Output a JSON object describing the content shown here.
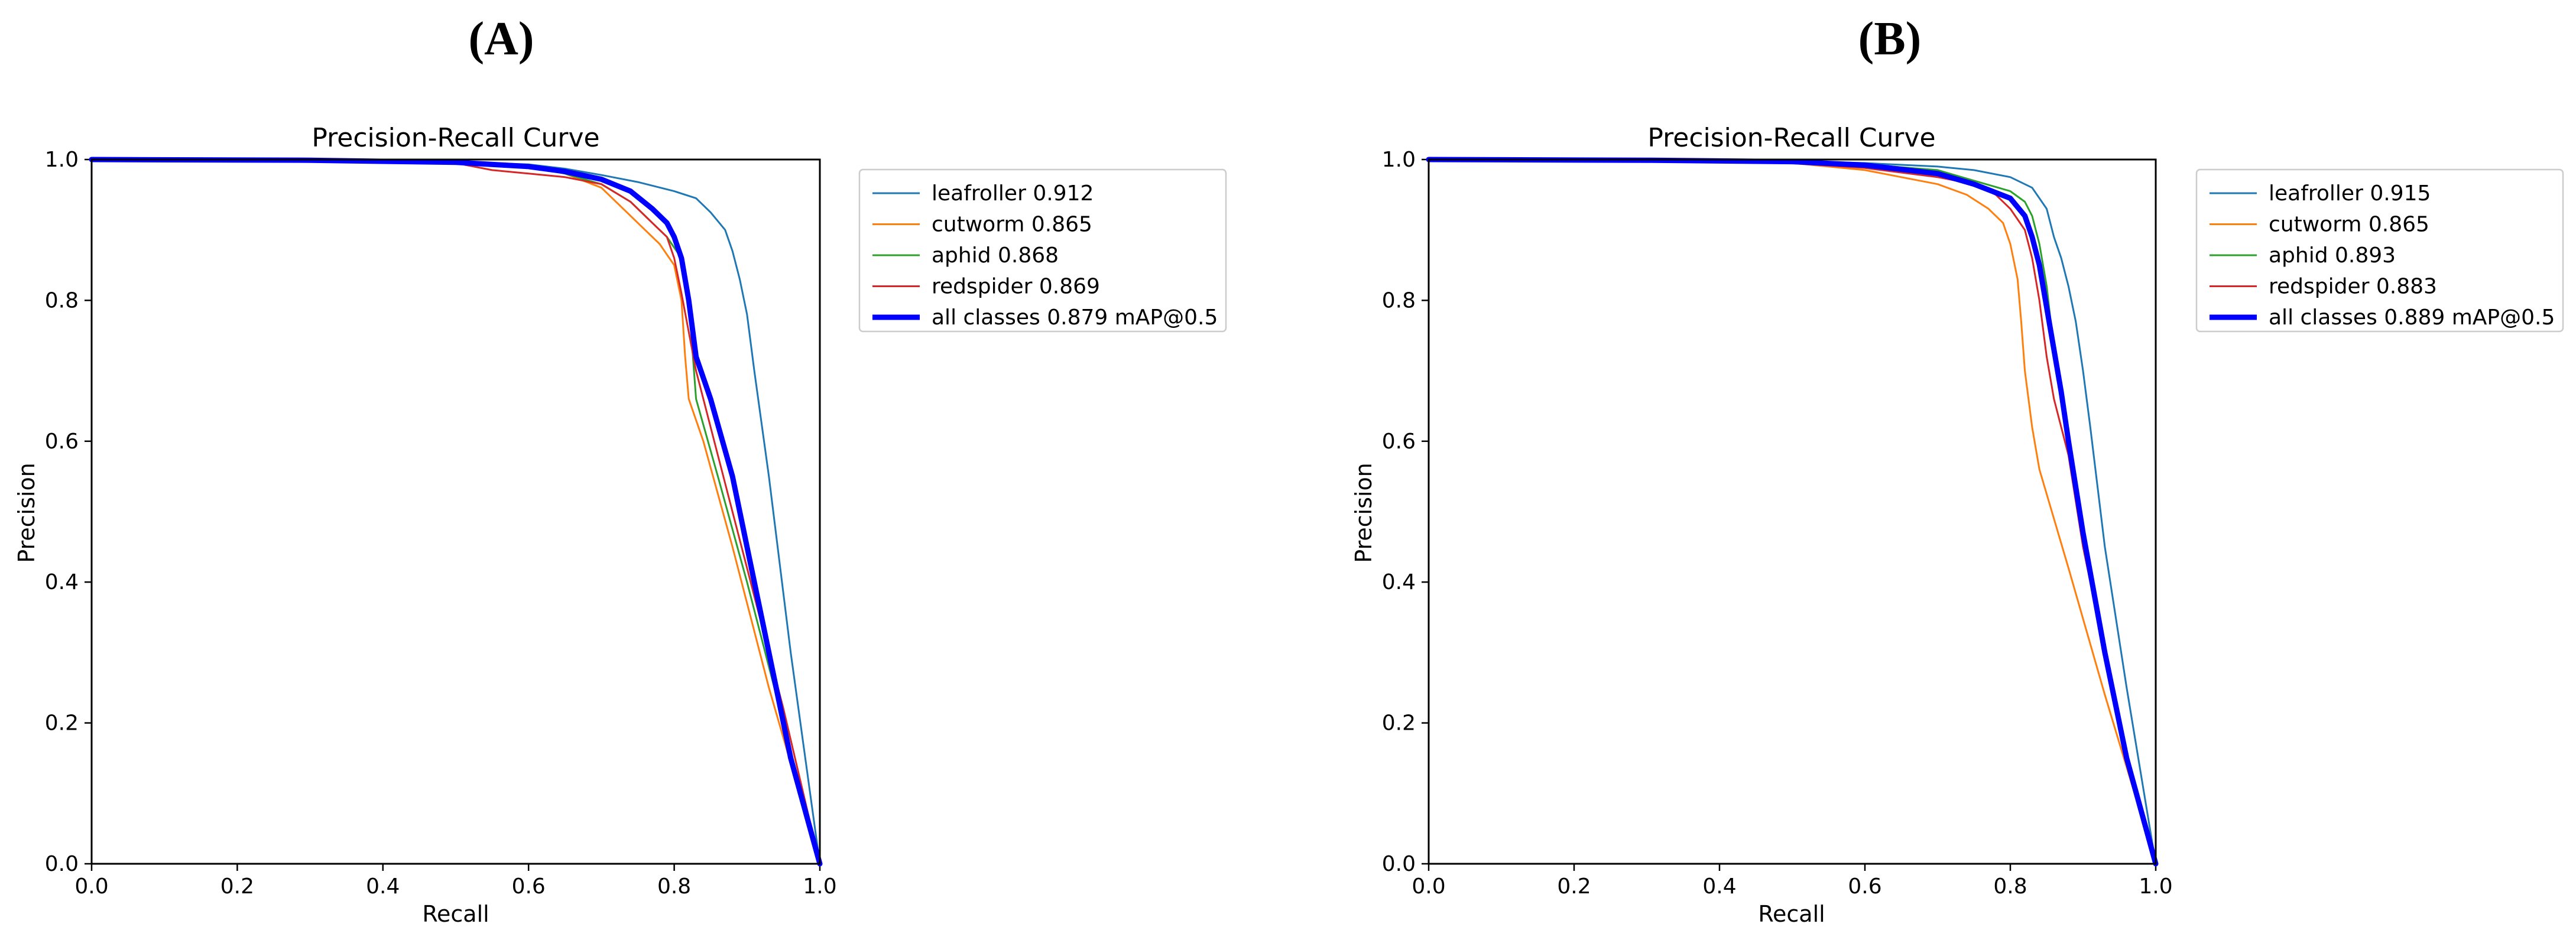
{
  "colors": {
    "leafroller": "#1f77b4",
    "cutworm": "#ff7f0e",
    "aphid": "#2ca02c",
    "redspider": "#d62728",
    "all_classes": "#0000ff",
    "axes": "#000000",
    "background": "#ffffff"
  },
  "chart_data": [
    {
      "panel_label": "(A)",
      "type": "line",
      "title": "Precision-Recall Curve",
      "xlabel": "Recall",
      "ylabel": "Precision",
      "xlim": [
        0,
        1
      ],
      "ylim": [
        0,
        1
      ],
      "xticks": [
        "0.0",
        "0.2",
        "0.4",
        "0.6",
        "0.8",
        "1.0"
      ],
      "yticks": [
        "0.0",
        "0.2",
        "0.4",
        "0.6",
        "0.8",
        "1.0"
      ],
      "grid": false,
      "legend_placement": "outside-right-top",
      "series": [
        {
          "name": "leafroller 0.912",
          "key": "leafroller",
          "x": [
            0,
            0.3,
            0.5,
            0.6,
            0.65,
            0.7,
            0.75,
            0.8,
            0.83,
            0.85,
            0.87,
            0.88,
            0.89,
            0.9,
            0.91,
            0.93,
            0.96,
            1.0
          ],
          "y": [
            1.0,
            0.999,
            0.997,
            0.993,
            0.987,
            0.978,
            0.968,
            0.955,
            0.945,
            0.925,
            0.9,
            0.87,
            0.83,
            0.78,
            0.7,
            0.55,
            0.3,
            0.0
          ]
        },
        {
          "name": "cutworm 0.865",
          "key": "cutworm",
          "x": [
            0,
            0.3,
            0.5,
            0.6,
            0.65,
            0.7,
            0.73,
            0.76,
            0.78,
            0.8,
            0.81,
            0.815,
            0.82,
            0.84,
            0.88,
            0.93,
            1.0
          ],
          "y": [
            1.0,
            0.999,
            0.996,
            0.99,
            0.98,
            0.96,
            0.93,
            0.9,
            0.88,
            0.85,
            0.8,
            0.72,
            0.66,
            0.6,
            0.45,
            0.25,
            0.0
          ]
        },
        {
          "name": "aphid 0.868",
          "key": "aphid",
          "x": [
            0,
            0.3,
            0.5,
            0.6,
            0.65,
            0.7,
            0.74,
            0.77,
            0.79,
            0.81,
            0.82,
            0.83,
            0.86,
            0.9,
            0.95,
            1.0
          ],
          "y": [
            1.0,
            0.999,
            0.996,
            0.99,
            0.98,
            0.965,
            0.94,
            0.91,
            0.89,
            0.86,
            0.8,
            0.66,
            0.55,
            0.4,
            0.2,
            0.0
          ]
        },
        {
          "name": "redspider 0.869",
          "key": "redspider",
          "x": [
            0,
            0.3,
            0.5,
            0.55,
            0.6,
            0.65,
            0.7,
            0.74,
            0.77,
            0.79,
            0.8,
            0.81,
            0.83,
            0.86,
            0.9,
            0.95,
            1.0
          ],
          "y": [
            1.0,
            0.999,
            0.995,
            0.985,
            0.98,
            0.975,
            0.965,
            0.94,
            0.91,
            0.89,
            0.86,
            0.81,
            0.7,
            0.58,
            0.42,
            0.22,
            0.0
          ]
        },
        {
          "name": "all classes 0.879 mAP@0.5",
          "key": "all_classes",
          "bold": true,
          "x": [
            0,
            0.3,
            0.5,
            0.6,
            0.65,
            0.7,
            0.74,
            0.77,
            0.79,
            0.8,
            0.81,
            0.82,
            0.83,
            0.85,
            0.88,
            0.9,
            0.93,
            0.96,
            1.0
          ],
          "y": [
            1.0,
            0.999,
            0.996,
            0.99,
            0.983,
            0.972,
            0.955,
            0.93,
            0.91,
            0.89,
            0.86,
            0.8,
            0.72,
            0.66,
            0.55,
            0.45,
            0.3,
            0.15,
            0.0
          ]
        }
      ]
    },
    {
      "panel_label": "(B)",
      "type": "line",
      "title": "Precision-Recall Curve",
      "xlabel": "Recall",
      "ylabel": "Precision",
      "xlim": [
        0,
        1
      ],
      "ylim": [
        0,
        1
      ],
      "xticks": [
        "0.0",
        "0.2",
        "0.4",
        "0.6",
        "0.8",
        "1.0"
      ],
      "yticks": [
        "0.0",
        "0.2",
        "0.4",
        "0.6",
        "0.8",
        "1.0"
      ],
      "grid": false,
      "legend_placement": "outside-right-top",
      "series": [
        {
          "name": "leafroller 0.915",
          "key": "leafroller",
          "x": [
            0,
            0.3,
            0.5,
            0.6,
            0.7,
            0.75,
            0.8,
            0.83,
            0.85,
            0.86,
            0.87,
            0.88,
            0.89,
            0.9,
            0.91,
            0.93,
            0.96,
            1.0
          ],
          "y": [
            1.0,
            0.999,
            0.998,
            0.995,
            0.99,
            0.985,
            0.975,
            0.96,
            0.93,
            0.89,
            0.86,
            0.82,
            0.77,
            0.7,
            0.62,
            0.45,
            0.25,
            0.0
          ]
        },
        {
          "name": "cutworm 0.865",
          "key": "cutworm",
          "x": [
            0,
            0.3,
            0.5,
            0.6,
            0.65,
            0.7,
            0.74,
            0.77,
            0.79,
            0.8,
            0.81,
            0.815,
            0.82,
            0.83,
            0.84,
            0.88,
            0.93,
            1.0
          ],
          "y": [
            1.0,
            0.999,
            0.995,
            0.985,
            0.975,
            0.965,
            0.95,
            0.93,
            0.91,
            0.88,
            0.83,
            0.77,
            0.7,
            0.62,
            0.56,
            0.42,
            0.24,
            0.0
          ]
        },
        {
          "name": "aphid 0.893",
          "key": "aphid",
          "x": [
            0,
            0.3,
            0.5,
            0.6,
            0.7,
            0.75,
            0.8,
            0.82,
            0.83,
            0.84,
            0.85,
            0.86,
            0.88,
            0.9,
            0.93,
            0.96,
            1.0
          ],
          "y": [
            1.0,
            0.999,
            0.997,
            0.993,
            0.985,
            0.97,
            0.955,
            0.94,
            0.92,
            0.88,
            0.82,
            0.73,
            0.6,
            0.48,
            0.3,
            0.15,
            0.0
          ]
        },
        {
          "name": "redspider 0.883",
          "key": "redspider",
          "x": [
            0,
            0.3,
            0.5,
            0.6,
            0.7,
            0.75,
            0.78,
            0.8,
            0.82,
            0.83,
            0.84,
            0.85,
            0.86,
            0.88,
            0.9,
            0.93,
            0.96,
            1.0
          ],
          "y": [
            1.0,
            0.999,
            0.995,
            0.988,
            0.975,
            0.965,
            0.95,
            0.93,
            0.9,
            0.86,
            0.8,
            0.72,
            0.66,
            0.58,
            0.45,
            0.3,
            0.15,
            0.0
          ]
        },
        {
          "name": "all classes 0.889 mAP@0.5",
          "key": "all_classes",
          "bold": true,
          "x": [
            0,
            0.3,
            0.5,
            0.6,
            0.7,
            0.75,
            0.8,
            0.82,
            0.83,
            0.84,
            0.85,
            0.86,
            0.87,
            0.88,
            0.9,
            0.93,
            0.96,
            1.0
          ],
          "y": [
            1.0,
            0.999,
            0.997,
            0.992,
            0.98,
            0.965,
            0.945,
            0.92,
            0.89,
            0.85,
            0.79,
            0.73,
            0.67,
            0.6,
            0.47,
            0.3,
            0.15,
            0.0
          ]
        }
      ]
    }
  ]
}
